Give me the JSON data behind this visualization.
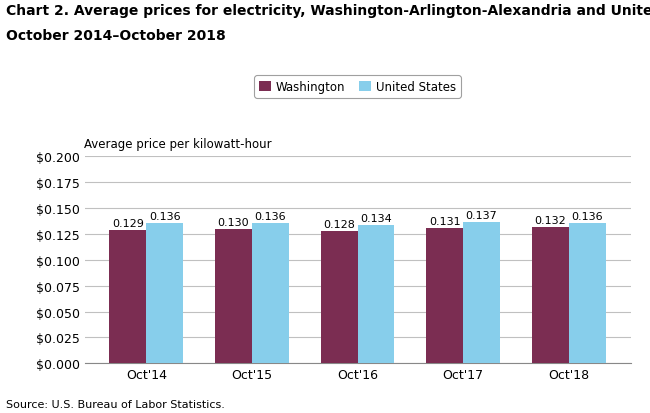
{
  "title_line1": "Chart 2. Average prices for electricity, Washington-Arlington-Alexandria and United States,",
  "title_line2": "October 2014–October 2018",
  "ylabel": "Average price per kilowatt-hour",
  "source": "Source: U.S. Bureau of Labor Statistics.",
  "categories": [
    "Oct'14",
    "Oct'15",
    "Oct'16",
    "Oct'17",
    "Oct'18"
  ],
  "washington": [
    0.129,
    0.13,
    0.128,
    0.131,
    0.132
  ],
  "united_states": [
    0.136,
    0.136,
    0.134,
    0.137,
    0.136
  ],
  "washington_color": "#7B2D52",
  "us_color": "#87CEEB",
  "bar_width": 0.35,
  "ylim": [
    0.0,
    0.2
  ],
  "yticks": [
    0.0,
    0.025,
    0.05,
    0.075,
    0.1,
    0.125,
    0.15,
    0.175,
    0.2
  ],
  "legend_labels": [
    "Washington",
    "United States"
  ],
  "grid_color": "#C0C0C0",
  "title_fontsize": 10,
  "axis_label_fontsize": 8.5,
  "tick_fontsize": 9,
  "annotation_fontsize": 8
}
